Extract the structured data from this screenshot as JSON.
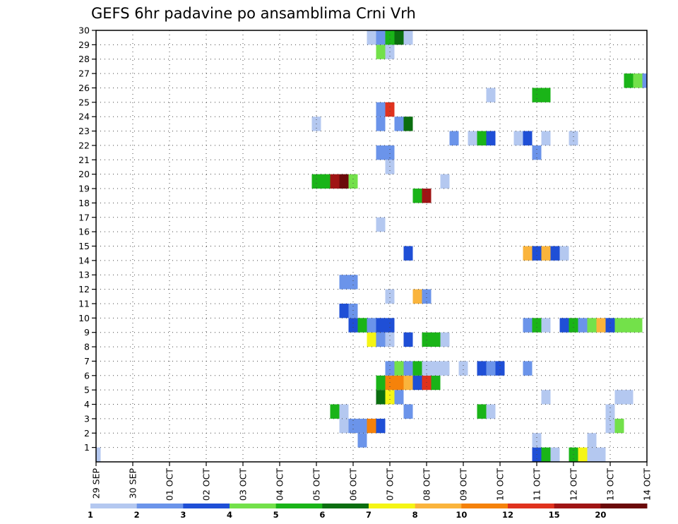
{
  "chart_data": {
    "type": "heatmap",
    "title": "GEFS 6hr padavine po ansamblima Crni Vrh",
    "x_tick_labels": [
      "29 SEP",
      "30 SEP",
      "01 OCT",
      "02 OCT",
      "03 OCT",
      "04 OCT",
      "05 OCT",
      "06 OCT",
      "07 OCT",
      "08 OCT",
      "09 OCT",
      "10 OCT",
      "11 OCT",
      "12 OCT",
      "13 OCT",
      "14 OCT"
    ],
    "x_range_days": [
      0,
      15
    ],
    "x_step_hours": 6,
    "y_tick_labels": [
      "1",
      "2",
      "3",
      "4",
      "5",
      "6",
      "7",
      "8",
      "9",
      "10",
      "11",
      "12",
      "13",
      "14",
      "15",
      "16",
      "17",
      "18",
      "19",
      "20",
      "21",
      "22",
      "23",
      "24",
      "25",
      "26",
      "27",
      "28",
      "29",
      "30"
    ],
    "y_range": [
      0,
      30
    ],
    "grid": true,
    "legend_position": "bottom",
    "legend": {
      "labels": [
        "1",
        "2",
        "3",
        "4",
        "5",
        "6",
        "7",
        "8",
        "10",
        "12",
        "15",
        "20"
      ],
      "colors": [
        "#b4c8f0",
        "#6b94ea",
        "#1f4fd6",
        "#73e14a",
        "#1ab418",
        "#0b6e10",
        "#f5f514",
        "#fab43c",
        "#f5820a",
        "#e0321e",
        "#a01414",
        "#6b0a0a"
      ]
    },
    "cells": [
      [
        0.0,
        0,
        1
      ],
      [
        12.0,
        0,
        3
      ],
      [
        12.25,
        0,
        5
      ],
      [
        12.5,
        0,
        1
      ],
      [
        13.0,
        0,
        5
      ],
      [
        13.25,
        0,
        7
      ],
      [
        13.5,
        0,
        1
      ],
      [
        13.75,
        0,
        1
      ],
      [
        7.25,
        1,
        2
      ],
      [
        12.0,
        1,
        1
      ],
      [
        13.5,
        1,
        1
      ],
      [
        6.75,
        2,
        1
      ],
      [
        7.0,
        2,
        2
      ],
      [
        7.25,
        2,
        2
      ],
      [
        7.5,
        2,
        9
      ],
      [
        7.75,
        2,
        3
      ],
      [
        14.0,
        2,
        1
      ],
      [
        14.25,
        2,
        4
      ],
      [
        6.5,
        3,
        5
      ],
      [
        6.75,
        3,
        1
      ],
      [
        8.5,
        3,
        2
      ],
      [
        10.5,
        3,
        5
      ],
      [
        10.75,
        3,
        1
      ],
      [
        14.0,
        3,
        1
      ],
      [
        7.75,
        4,
        6
      ],
      [
        8.0,
        4,
        7
      ],
      [
        8.25,
        4,
        2
      ],
      [
        12.25,
        4,
        1
      ],
      [
        14.25,
        4,
        1
      ],
      [
        14.5,
        4,
        1
      ],
      [
        7.75,
        5,
        5
      ],
      [
        8.0,
        5,
        9
      ],
      [
        8.25,
        5,
        9
      ],
      [
        8.5,
        5,
        8
      ],
      [
        8.75,
        5,
        3
      ],
      [
        9.0,
        5,
        10
      ],
      [
        9.25,
        5,
        5
      ],
      [
        8.0,
        6,
        2
      ],
      [
        8.25,
        6,
        4
      ],
      [
        8.5,
        6,
        2
      ],
      [
        8.75,
        6,
        5
      ],
      [
        9.0,
        6,
        1
      ],
      [
        9.25,
        6,
        1
      ],
      [
        9.5,
        6,
        1
      ],
      [
        10.0,
        6,
        1
      ],
      [
        10.5,
        6,
        3
      ],
      [
        10.75,
        6,
        2
      ],
      [
        11.0,
        6,
        3
      ],
      [
        11.75,
        6,
        2
      ],
      [
        7.5,
        8,
        7
      ],
      [
        7.75,
        8,
        2
      ],
      [
        8.0,
        8,
        1
      ],
      [
        8.5,
        8,
        3
      ],
      [
        9.0,
        8,
        5
      ],
      [
        9.25,
        8,
        5
      ],
      [
        9.5,
        8,
        1
      ],
      [
        7.0,
        9,
        3
      ],
      [
        7.25,
        9,
        5
      ],
      [
        7.5,
        9,
        2
      ],
      [
        7.75,
        9,
        3
      ],
      [
        8.0,
        9,
        3
      ],
      [
        11.75,
        9,
        2
      ],
      [
        12.0,
        9,
        5
      ],
      [
        12.25,
        9,
        1
      ],
      [
        12.75,
        9,
        3
      ],
      [
        13.0,
        9,
        5
      ],
      [
        13.25,
        9,
        2
      ],
      [
        13.5,
        9,
        4
      ],
      [
        13.75,
        9,
        8
      ],
      [
        14.0,
        9,
        3
      ],
      [
        14.25,
        9,
        4
      ],
      [
        14.5,
        9,
        4
      ],
      [
        14.75,
        9,
        4
      ],
      [
        6.75,
        10,
        3
      ],
      [
        7.0,
        10,
        2
      ],
      [
        8.0,
        11,
        1
      ],
      [
        8.75,
        11,
        8
      ],
      [
        9.0,
        11,
        2
      ],
      [
        6.75,
        12,
        2
      ],
      [
        7.0,
        12,
        2
      ],
      [
        8.5,
        14,
        3
      ],
      [
        11.75,
        14,
        8
      ],
      [
        12.0,
        14,
        3
      ],
      [
        12.25,
        14,
        8
      ],
      [
        12.5,
        14,
        3
      ],
      [
        12.75,
        14,
        1
      ],
      [
        7.75,
        16,
        1
      ],
      [
        8.75,
        18,
        5
      ],
      [
        9.0,
        18,
        11
      ],
      [
        9.5,
        19,
        1
      ],
      [
        6.0,
        19,
        5
      ],
      [
        6.25,
        19,
        5
      ],
      [
        6.5,
        19,
        11
      ],
      [
        6.75,
        19,
        12
      ],
      [
        7.0,
        19,
        4
      ],
      [
        8.0,
        20,
        1
      ],
      [
        7.75,
        21,
        2
      ],
      [
        8.0,
        21,
        2
      ],
      [
        12.0,
        21,
        2
      ],
      [
        9.75,
        22,
        2
      ],
      [
        10.25,
        22,
        1
      ],
      [
        10.5,
        22,
        5
      ],
      [
        10.75,
        22,
        3
      ],
      [
        11.5,
        22,
        1
      ],
      [
        11.75,
        22,
        3
      ],
      [
        12.25,
        22,
        1
      ],
      [
        13.0,
        22,
        1
      ],
      [
        6.0,
        23,
        1
      ],
      [
        7.75,
        23,
        2
      ],
      [
        8.25,
        23,
        2
      ],
      [
        8.5,
        23,
        6
      ],
      [
        7.75,
        24,
        2
      ],
      [
        8.0,
        24,
        10
      ],
      [
        10.75,
        25,
        1
      ],
      [
        12.0,
        25,
        5
      ],
      [
        12.25,
        25,
        5
      ],
      [
        14.5,
        26,
        5
      ],
      [
        14.75,
        26,
        4
      ],
      [
        15.0,
        26,
        2
      ],
      [
        7.75,
        28,
        4
      ],
      [
        8.0,
        28,
        1
      ],
      [
        7.5,
        29,
        1
      ],
      [
        7.75,
        29,
        2
      ],
      [
        8.0,
        29,
        5
      ],
      [
        8.25,
        29,
        6
      ],
      [
        8.5,
        29,
        1
      ]
    ]
  }
}
